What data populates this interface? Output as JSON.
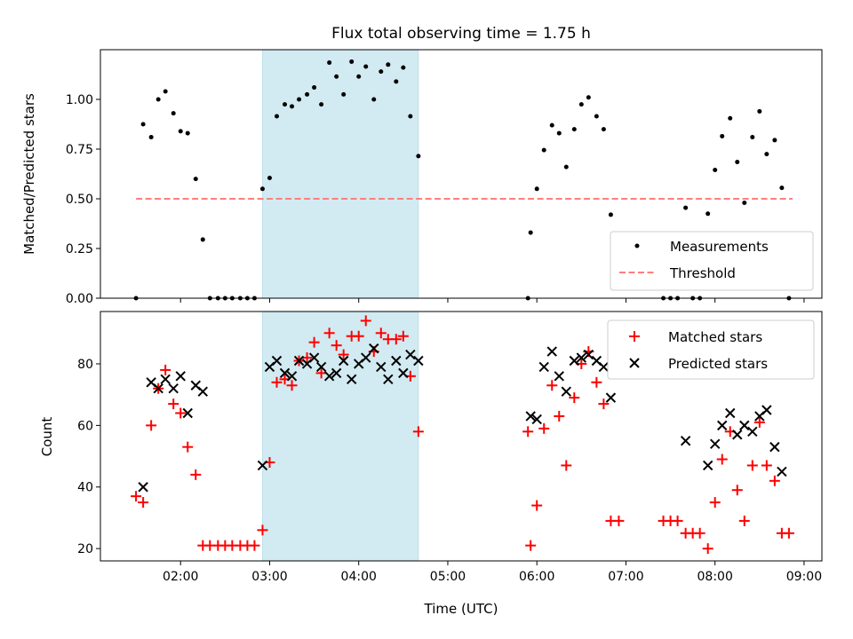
{
  "chart_data": [
    {
      "type": "scatter",
      "title": "Flux total observing time = 1.75 h",
      "ylabel": "Matched/Predicted stars",
      "xlabel": "",
      "x_unit": "hours (UTC)",
      "xlim": [
        1.1,
        9.2
      ],
      "ylim": [
        0,
        1.25
      ],
      "yticks": [
        0.0,
        0.25,
        0.5,
        0.75,
        1.0
      ],
      "ytick_labels": [
        "0.00",
        "0.25",
        "0.50",
        "0.75",
        "1.00"
      ],
      "highlight_span": [
        2.92,
        4.67
      ],
      "legend": {
        "placement": "lower-right",
        "entries": [
          "Measurements",
          "Threshold"
        ]
      },
      "threshold": {
        "name": "Threshold",
        "value": 0.5,
        "x_range": [
          1.5,
          8.87
        ],
        "color": "#ff7f7f"
      },
      "series": [
        {
          "name": "Measurements",
          "marker": "dot",
          "color": "#000000",
          "points": [
            [
              1.5,
              0.0
            ],
            [
              1.58,
              0.875
            ],
            [
              1.67,
              0.81
            ],
            [
              1.75,
              1.0
            ],
            [
              1.83,
              1.04
            ],
            [
              1.92,
              0.93
            ],
            [
              2.0,
              0.84
            ],
            [
              2.08,
              0.83
            ],
            [
              2.17,
              0.6
            ],
            [
              2.25,
              0.295
            ],
            [
              2.33,
              0.0
            ],
            [
              2.42,
              0.0
            ],
            [
              2.5,
              0.0
            ],
            [
              2.58,
              0.0
            ],
            [
              2.67,
              0.0
            ],
            [
              2.75,
              0.0
            ],
            [
              2.83,
              0.0
            ],
            [
              2.92,
              0.55
            ],
            [
              3.0,
              0.605
            ],
            [
              3.08,
              0.915
            ],
            [
              3.17,
              0.975
            ],
            [
              3.25,
              0.965
            ],
            [
              3.33,
              1.0
            ],
            [
              3.42,
              1.025
            ],
            [
              3.5,
              1.06
            ],
            [
              3.58,
              0.975
            ],
            [
              3.67,
              1.185
            ],
            [
              3.75,
              1.115
            ],
            [
              3.83,
              1.025
            ],
            [
              3.92,
              1.19
            ],
            [
              4.0,
              1.115
            ],
            [
              4.08,
              1.165
            ],
            [
              4.17,
              1.0
            ],
            [
              4.25,
              1.14
            ],
            [
              4.33,
              1.175
            ],
            [
              4.42,
              1.09
            ],
            [
              4.5,
              1.16
            ],
            [
              4.58,
              0.915
            ],
            [
              4.67,
              0.715
            ],
            [
              5.9,
              0.0
            ],
            [
              5.93,
              0.33
            ],
            [
              6.0,
              0.55
            ],
            [
              6.08,
              0.745
            ],
            [
              6.17,
              0.87
            ],
            [
              6.25,
              0.83
            ],
            [
              6.33,
              0.66
            ],
            [
              6.42,
              0.85
            ],
            [
              6.5,
              0.975
            ],
            [
              6.58,
              1.01
            ],
            [
              6.67,
              0.915
            ],
            [
              6.75,
              0.85
            ],
            [
              6.83,
              0.42
            ],
            [
              7.42,
              0.0
            ],
            [
              7.5,
              0.0
            ],
            [
              7.58,
              0.0
            ],
            [
              7.67,
              0.455
            ],
            [
              7.75,
              0.0
            ],
            [
              7.83,
              0.0
            ],
            [
              7.92,
              0.425
            ],
            [
              8.0,
              0.645
            ],
            [
              8.08,
              0.815
            ],
            [
              8.17,
              0.905
            ],
            [
              8.25,
              0.685
            ],
            [
              8.33,
              0.48
            ],
            [
              8.42,
              0.81
            ],
            [
              8.5,
              0.94
            ],
            [
              8.58,
              0.725
            ],
            [
              8.67,
              0.795
            ],
            [
              8.75,
              0.555
            ],
            [
              8.83,
              0.0
            ]
          ]
        }
      ]
    },
    {
      "type": "scatter",
      "title": "",
      "ylabel": "Count",
      "xlabel": "Time (UTC)",
      "x_unit": "hours (UTC)",
      "xlim": [
        1.1,
        9.2
      ],
      "ylim": [
        16,
        97
      ],
      "yticks": [
        20,
        40,
        60,
        80
      ],
      "ytick_labels": [
        "20",
        "40",
        "60",
        "80"
      ],
      "xticks": [
        2,
        3,
        4,
        5,
        6,
        7,
        8,
        9
      ],
      "xtick_labels": [
        "02:00",
        "03:00",
        "04:00",
        "05:00",
        "06:00",
        "07:00",
        "08:00",
        "09:00"
      ],
      "highlight_span": [
        2.92,
        4.67
      ],
      "legend": {
        "placement": "top-right",
        "entries": [
          "Matched stars",
          "Predicted stars"
        ]
      },
      "series": [
        {
          "name": "Matched stars",
          "marker": "plus",
          "color": "#ff0000",
          "points": [
            [
              1.5,
              37
            ],
            [
              1.58,
              35
            ],
            [
              1.67,
              60
            ],
            [
              1.75,
              72
            ],
            [
              1.83,
              78
            ],
            [
              1.92,
              67
            ],
            [
              2.0,
              64
            ],
            [
              2.08,
              53
            ],
            [
              2.17,
              44
            ],
            [
              2.25,
              21
            ],
            [
              2.33,
              21
            ],
            [
              2.42,
              21
            ],
            [
              2.5,
              21
            ],
            [
              2.58,
              21
            ],
            [
              2.67,
              21
            ],
            [
              2.75,
              21
            ],
            [
              2.83,
              21
            ],
            [
              2.92,
              26
            ],
            [
              3.0,
              48
            ],
            [
              3.08,
              74
            ],
            [
              3.17,
              75
            ],
            [
              3.25,
              73
            ],
            [
              3.33,
              81
            ],
            [
              3.42,
              82
            ],
            [
              3.5,
              87
            ],
            [
              3.58,
              77
            ],
            [
              3.67,
              90
            ],
            [
              3.75,
              86
            ],
            [
              3.83,
              83
            ],
            [
              3.92,
              89
            ],
            [
              4.0,
              89
            ],
            [
              4.08,
              94
            ],
            [
              4.17,
              84
            ],
            [
              4.25,
              90
            ],
            [
              4.33,
              88
            ],
            [
              4.42,
              88
            ],
            [
              4.5,
              89
            ],
            [
              4.58,
              76
            ],
            [
              4.67,
              58
            ],
            [
              5.9,
              58
            ],
            [
              5.93,
              21
            ],
            [
              6.0,
              34
            ],
            [
              6.08,
              59
            ],
            [
              6.17,
              73
            ],
            [
              6.25,
              63
            ],
            [
              6.33,
              47
            ],
            [
              6.42,
              69
            ],
            [
              6.5,
              80
            ],
            [
              6.58,
              84
            ],
            [
              6.67,
              74
            ],
            [
              6.75,
              67
            ],
            [
              6.83,
              29
            ],
            [
              6.92,
              29
            ],
            [
              7.42,
              29
            ],
            [
              7.5,
              29
            ],
            [
              7.58,
              29
            ],
            [
              7.67,
              25
            ],
            [
              7.75,
              25
            ],
            [
              7.83,
              25
            ],
            [
              7.92,
              20
            ],
            [
              8.0,
              35
            ],
            [
              8.08,
              49
            ],
            [
              8.17,
              58
            ],
            [
              8.25,
              39
            ],
            [
              8.33,
              29
            ],
            [
              8.42,
              47
            ],
            [
              8.5,
              61
            ],
            [
              8.58,
              47
            ],
            [
              8.67,
              42
            ],
            [
              8.75,
              25
            ],
            [
              8.83,
              25
            ]
          ]
        },
        {
          "name": "Predicted stars",
          "marker": "x",
          "color": "#000000",
          "points": [
            [
              1.58,
              40
            ],
            [
              1.67,
              74
            ],
            [
              1.75,
              72
            ],
            [
              1.83,
              75
            ],
            [
              1.92,
              72
            ],
            [
              2.0,
              76
            ],
            [
              2.08,
              64
            ],
            [
              2.17,
              73
            ],
            [
              2.25,
              71
            ],
            [
              2.92,
              47
            ],
            [
              3.0,
              79
            ],
            [
              3.08,
              81
            ],
            [
              3.17,
              77
            ],
            [
              3.25,
              76
            ],
            [
              3.33,
              81
            ],
            [
              3.42,
              80
            ],
            [
              3.5,
              82
            ],
            [
              3.58,
              79
            ],
            [
              3.67,
              76
            ],
            [
              3.75,
              77
            ],
            [
              3.83,
              81
            ],
            [
              3.92,
              75
            ],
            [
              4.0,
              80
            ],
            [
              4.08,
              82
            ],
            [
              4.17,
              85
            ],
            [
              4.25,
              79
            ],
            [
              4.33,
              75
            ],
            [
              4.42,
              81
            ],
            [
              4.5,
              77
            ],
            [
              4.58,
              83
            ],
            [
              4.67,
              81
            ],
            [
              5.93,
              63
            ],
            [
              6.0,
              62
            ],
            [
              6.08,
              79
            ],
            [
              6.17,
              84
            ],
            [
              6.25,
              76
            ],
            [
              6.33,
              71
            ],
            [
              6.42,
              81
            ],
            [
              6.5,
              82
            ],
            [
              6.58,
              83
            ],
            [
              6.67,
              81
            ],
            [
              6.75,
              79
            ],
            [
              6.83,
              69
            ],
            [
              7.67,
              55
            ],
            [
              7.92,
              47
            ],
            [
              8.0,
              54
            ],
            [
              8.08,
              60
            ],
            [
              8.17,
              64
            ],
            [
              8.25,
              57
            ],
            [
              8.33,
              60
            ],
            [
              8.42,
              58
            ],
            [
              8.5,
              63
            ],
            [
              8.58,
              65
            ],
            [
              8.67,
              53
            ],
            [
              8.75,
              45
            ]
          ]
        }
      ]
    }
  ]
}
